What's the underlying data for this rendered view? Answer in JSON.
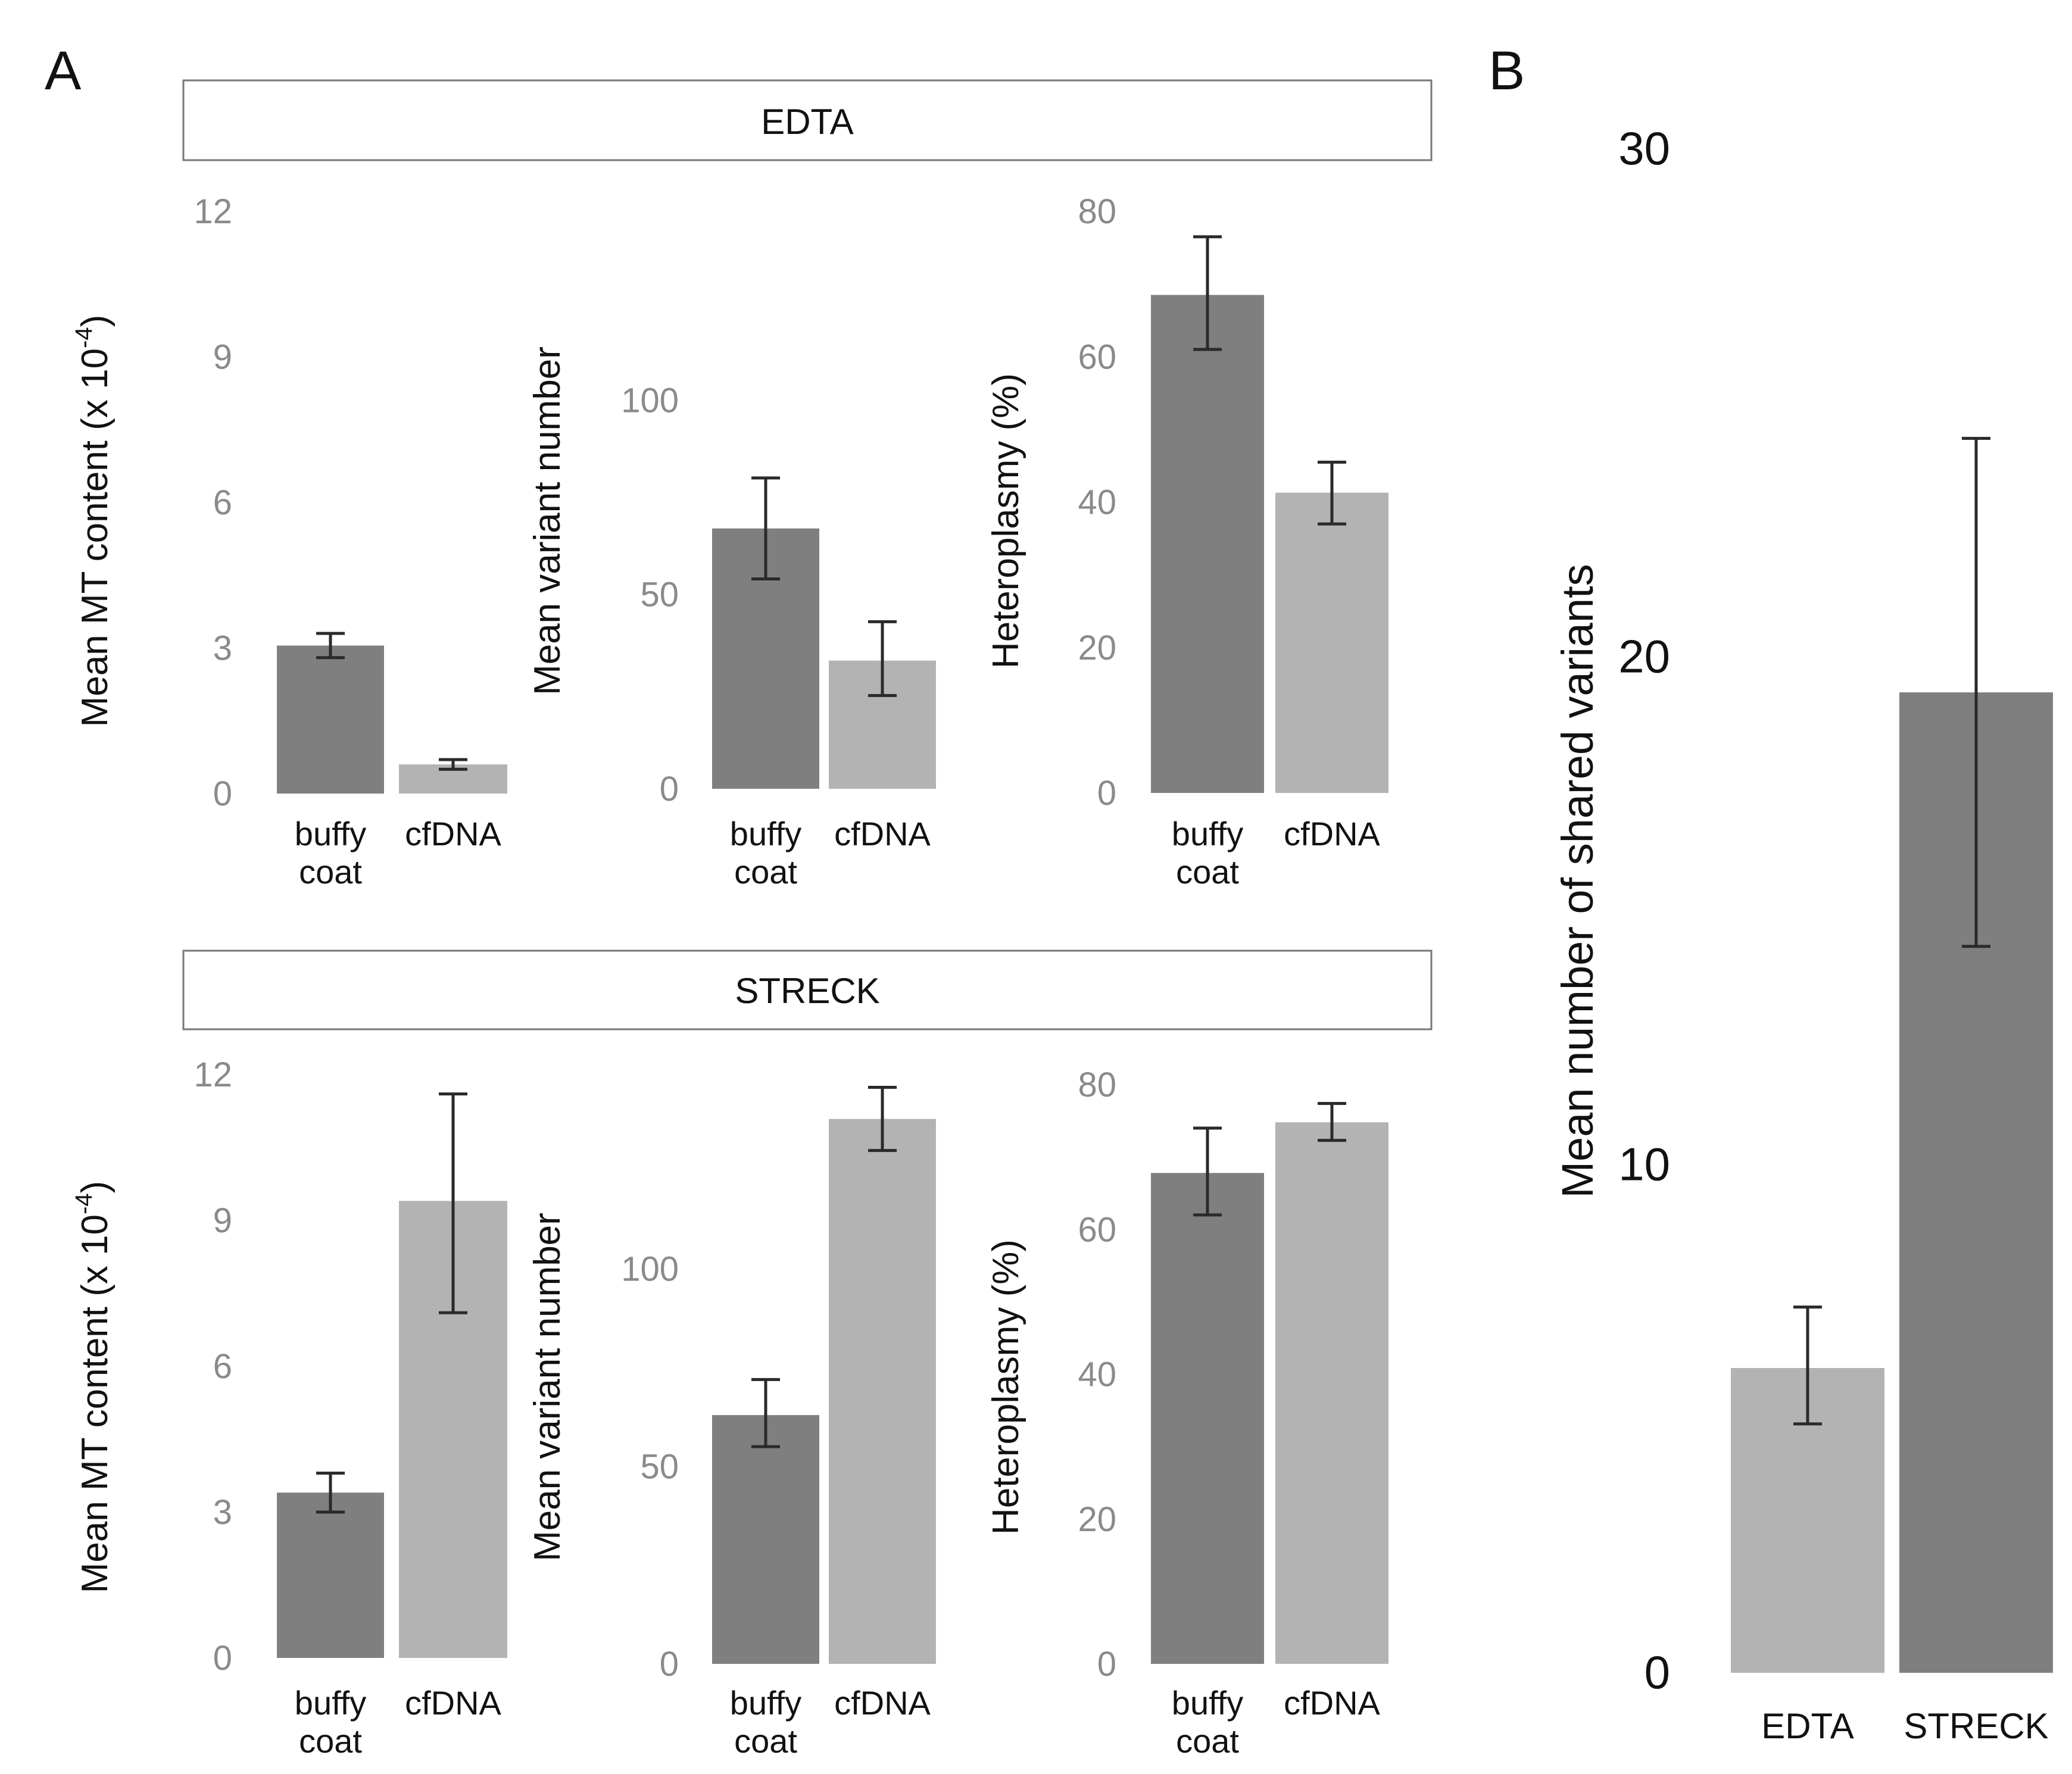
{
  "panel_labels": {
    "a": "A",
    "b": "B"
  },
  "strips": {
    "top": "EDTA",
    "bottom": "STRECK"
  },
  "colors": {
    "buffy_coat": "#7f7f7f",
    "cfdna": "#b3b3b3",
    "error_bar": "#2a2a2a",
    "strip_border": "#777777"
  },
  "chart_data": [
    {
      "id": "edta_mt_content",
      "type": "bar",
      "group": "EDTA",
      "categories": [
        "buffy coat",
        "cfDNA"
      ],
      "category_lines": [
        [
          "buffy",
          "coat"
        ],
        [
          "cfDNA"
        ]
      ],
      "values": [
        3.05,
        0.6
      ],
      "errors": [
        [
          2.8,
          3.3
        ],
        [
          0.5,
          0.7
        ]
      ],
      "ylabel": "Mean MT content (x 10",
      "ylabel_sup": "-4",
      "ylabel_tail": ")",
      "ylim": [
        0,
        12
      ],
      "yticks": [
        0,
        3,
        6,
        9,
        12
      ],
      "ytick_labels": [
        "0",
        "3",
        "6",
        "9",
        "12"
      ]
    },
    {
      "id": "edta_variant_number",
      "type": "bar",
      "group": "EDTA",
      "categories": [
        "buffy coat",
        "cfDNA"
      ],
      "category_lines": [
        [
          "buffy",
          "coat"
        ],
        [
          "cfDNA"
        ]
      ],
      "values": [
        67,
        33
      ],
      "errors": [
        [
          54,
          80
        ],
        [
          24,
          43
        ]
      ],
      "ylabel": "Mean variant number",
      "ylim": [
        0,
        150
      ],
      "yticks": [
        0,
        50,
        100
      ],
      "ytick_labels": [
        "0",
        "50",
        "100"
      ]
    },
    {
      "id": "edta_heteroplasmy",
      "type": "bar",
      "group": "EDTA",
      "categories": [
        "buffy coat",
        "cfDNA"
      ],
      "category_lines": [
        [
          "buffy",
          "coat"
        ],
        [
          "cfDNA"
        ]
      ],
      "values": [
        68.5,
        41.3
      ],
      "errors": [
        [
          61,
          76.5
        ],
        [
          37,
          45.5
        ]
      ],
      "ylabel": "Heteroplasmy (%)",
      "ylim": [
        0,
        80
      ],
      "yticks": [
        0,
        20,
        40,
        60,
        80
      ],
      "ytick_labels": [
        "0",
        "20",
        "40",
        "60",
        "80"
      ]
    },
    {
      "id": "streck_mt_content",
      "type": "bar",
      "group": "STRECK",
      "categories": [
        "buffy coat",
        "cfDNA"
      ],
      "category_lines": [
        [
          "buffy",
          "coat"
        ],
        [
          "cfDNA"
        ]
      ],
      "values": [
        3.4,
        9.4
      ],
      "errors": [
        [
          3.0,
          3.8
        ],
        [
          7.1,
          11.6
        ]
      ],
      "ylabel": "Mean MT content (x 10",
      "ylabel_sup": "-4",
      "ylabel_tail": ")",
      "ylim": [
        0,
        12
      ],
      "yticks": [
        0,
        3,
        6,
        9,
        12
      ],
      "ytick_labels": [
        "0",
        "3",
        "6",
        "9",
        "12"
      ]
    },
    {
      "id": "streck_variant_number",
      "type": "bar",
      "group": "STRECK",
      "categories": [
        "buffy coat",
        "cfDNA"
      ],
      "category_lines": [
        [
          "buffy",
          "coat"
        ],
        [
          "cfDNA"
        ]
      ],
      "values": [
        63,
        138
      ],
      "errors": [
        [
          55,
          72
        ],
        [
          130,
          146
        ]
      ],
      "ylabel": "Mean variant number",
      "ylim": [
        0,
        150
      ],
      "yticks": [
        0,
        50,
        100
      ],
      "ytick_labels": [
        "0",
        "50",
        "100"
      ]
    },
    {
      "id": "streck_heteroplasmy",
      "type": "bar",
      "group": "STRECK",
      "categories": [
        "buffy coat",
        "cfDNA"
      ],
      "category_lines": [
        [
          "buffy",
          "coat"
        ],
        [
          "cfDNA"
        ]
      ],
      "values": [
        67.8,
        74.8
      ],
      "errors": [
        [
          62,
          74
        ],
        [
          72.3,
          77.4
        ]
      ],
      "ylabel": "Heteroplasmy (%)",
      "ylim": [
        0,
        80
      ],
      "yticks": [
        0,
        20,
        40,
        60,
        80
      ],
      "ytick_labels": [
        "0",
        "20",
        "40",
        "60",
        "80"
      ]
    },
    {
      "id": "shared_variants",
      "type": "bar",
      "group": "B",
      "categories": [
        "EDTA",
        "STRECK"
      ],
      "category_lines": [
        [
          "EDTA"
        ],
        [
          "STRECK"
        ]
      ],
      "values": [
        6,
        19.3
      ],
      "errors": [
        [
          4.9,
          7.2
        ],
        [
          14.3,
          24.3
        ]
      ],
      "ylabel": "Mean number of shared variants",
      "ylim": [
        0,
        30
      ],
      "yticks": [
        0,
        10,
        20,
        30
      ],
      "ytick_labels": [
        "0",
        "10",
        "20",
        "30"
      ]
    }
  ]
}
